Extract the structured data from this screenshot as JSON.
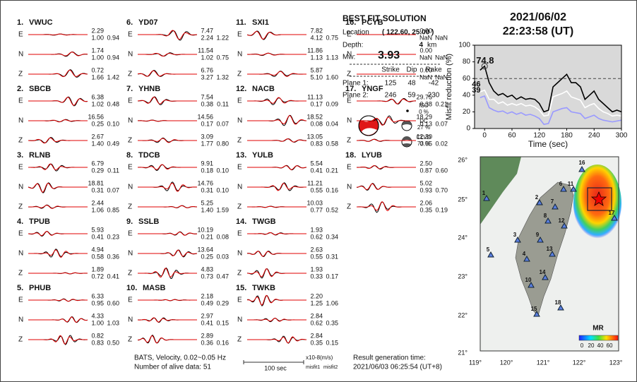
{
  "stations": [
    {
      "number": "1.",
      "name": "VWUC",
      "components": [
        {
          "comp": "E",
          "amp": "2.29",
          "misfit1": "1.00",
          "misfit2": "0.94"
        },
        {
          "comp": "N",
          "amp": "1.74",
          "misfit1": "1.00",
          "misfit2": "0.94"
        },
        {
          "comp": "Z",
          "amp": "0.72",
          "misfit1": "1.66",
          "misfit2": "1.42"
        }
      ]
    },
    {
      "number": "2.",
      "name": "SBCB",
      "components": [
        {
          "comp": "E",
          "amp": "6.38",
          "misfit1": "1.02",
          "misfit2": "0.48"
        },
        {
          "comp": "N",
          "amp": "16.56",
          "misfit1": "0.25",
          "misfit2": "0.10"
        },
        {
          "comp": "Z",
          "amp": "2.67",
          "misfit1": "1.40",
          "misfit2": "0.49"
        }
      ]
    },
    {
      "number": "3.",
      "name": "RLNB",
      "components": [
        {
          "comp": "E",
          "amp": "6.79",
          "misfit1": "0.29",
          "misfit2": "0.11"
        },
        {
          "comp": "N",
          "amp": "18.81",
          "misfit1": "0.31",
          "misfit2": "0.07"
        },
        {
          "comp": "Z",
          "amp": "2.44",
          "misfit1": "1.06",
          "misfit2": "0.85"
        }
      ]
    },
    {
      "number": "4.",
      "name": "TPUB",
      "components": [
        {
          "comp": "E",
          "amp": "5.93",
          "misfit1": "0.41",
          "misfit2": "0.23"
        },
        {
          "comp": "N",
          "amp": "4.94",
          "misfit1": "0.58",
          "misfit2": "0.36"
        },
        {
          "comp": "Z",
          "amp": "1.89",
          "misfit1": "0.72",
          "misfit2": "0.41"
        }
      ]
    },
    {
      "number": "5.",
      "name": "PHUB",
      "components": [
        {
          "comp": "E",
          "amp": "6.33",
          "misfit1": "0.95",
          "misfit2": "0.60"
        },
        {
          "comp": "N",
          "amp": "4.33",
          "misfit1": "1.00",
          "misfit2": "1.03"
        },
        {
          "comp": "Z",
          "amp": "0.82",
          "misfit1": "0.83",
          "misfit2": "0.50"
        }
      ]
    },
    {
      "number": "6.",
      "name": "YD07",
      "components": [
        {
          "comp": "E",
          "amp": "7.47",
          "misfit1": "2.24",
          "misfit2": "1.22"
        },
        {
          "comp": "N",
          "amp": "11.54",
          "misfit1": "1.02",
          "misfit2": "0.75"
        },
        {
          "comp": "Z",
          "amp": "6.76",
          "misfit1": "3.27",
          "misfit2": "1.32"
        }
      ]
    },
    {
      "number": "7.",
      "name": "YHNB",
      "components": [
        {
          "comp": "E",
          "amp": "7.54",
          "misfit1": "0.38",
          "misfit2": "0.11"
        },
        {
          "comp": "N",
          "amp": "14.56",
          "misfit1": "0.17",
          "misfit2": "0.07"
        },
        {
          "comp": "Z",
          "amp": "3.09",
          "misfit1": "1.77",
          "misfit2": "0.80"
        }
      ]
    },
    {
      "number": "8.",
      "name": "TDCB",
      "components": [
        {
          "comp": "E",
          "amp": "9.91",
          "misfit1": "0.18",
          "misfit2": "0.10"
        },
        {
          "comp": "N",
          "amp": "14.76",
          "misfit1": "0.31",
          "misfit2": "0.10"
        },
        {
          "comp": "Z",
          "amp": "5.25",
          "misfit1": "1.40",
          "misfit2": "1.59"
        }
      ]
    },
    {
      "number": "9.",
      "name": "SSLB",
      "components": [
        {
          "comp": "E",
          "amp": "10.19",
          "misfit1": "0.21",
          "misfit2": "0.08"
        },
        {
          "comp": "N",
          "amp": "13.64",
          "misfit1": "0.25",
          "misfit2": "0.03"
        },
        {
          "comp": "Z",
          "amp": "4.83",
          "misfit1": "0.73",
          "misfit2": "0.47"
        }
      ]
    },
    {
      "number": "10.",
      "name": "MASB",
      "components": [
        {
          "comp": "E",
          "amp": "2.18",
          "misfit1": "0.49",
          "misfit2": "0.29"
        },
        {
          "comp": "N",
          "amp": "2.97",
          "misfit1": "0.41",
          "misfit2": "0.15"
        },
        {
          "comp": "Z",
          "amp": "2.89",
          "misfit1": "0.36",
          "misfit2": "0.16"
        }
      ]
    },
    {
      "number": "11.",
      "name": "SXI1",
      "components": [
        {
          "comp": "E",
          "amp": "7.82",
          "misfit1": "4.12",
          "misfit2": "0.75"
        },
        {
          "comp": "N",
          "amp": "11.86",
          "misfit1": "1.13",
          "misfit2": "1.13"
        },
        {
          "comp": "Z",
          "amp": "5.87",
          "misfit1": "5.10",
          "misfit2": "1.60"
        }
      ]
    },
    {
      "number": "12.",
      "name": "NACB",
      "components": [
        {
          "comp": "E",
          "amp": "11.13",
          "misfit1": "0.17",
          "misfit2": "0.09"
        },
        {
          "comp": "N",
          "amp": "18.52",
          "misfit1": "0.08",
          "misfit2": "0.04"
        },
        {
          "comp": "Z",
          "amp": "13.05",
          "misfit1": "0.83",
          "misfit2": "0.58"
        }
      ]
    },
    {
      "number": "13.",
      "name": "YULB",
      "components": [
        {
          "comp": "E",
          "amp": "5.54",
          "misfit1": "0.41",
          "misfit2": "0.21"
        },
        {
          "comp": "N",
          "amp": "11.21",
          "misfit1": "0.55",
          "misfit2": "0.16"
        },
        {
          "comp": "Z",
          "amp": "10.03",
          "misfit1": "0.77",
          "misfit2": "0.52"
        }
      ]
    },
    {
      "number": "14.",
      "name": "TWGB",
      "components": [
        {
          "comp": "E",
          "amp": "1.93",
          "misfit1": "0.62",
          "misfit2": "0.34"
        },
        {
          "comp": "N",
          "amp": "2.63",
          "misfit1": "0.55",
          "misfit2": "0.31"
        },
        {
          "comp": "Z",
          "amp": "1.93",
          "misfit1": "0.33",
          "misfit2": "0.17"
        }
      ]
    },
    {
      "number": "15.",
      "name": "TWKB",
      "components": [
        {
          "comp": "E",
          "amp": "2.20",
          "misfit1": "1.25",
          "misfit2": "1.06"
        },
        {
          "comp": "N",
          "amp": "2.84",
          "misfit1": "0.62",
          "misfit2": "0.35"
        },
        {
          "comp": "Z",
          "amp": "2.84",
          "misfit1": "0.35",
          "misfit2": "0.15"
        }
      ]
    },
    {
      "number": "16.",
      "name": "PCYB",
      "components": [
        {
          "comp": "E",
          "amp": "0.00",
          "misfit1": "NaN",
          "misfit2": "NaN"
        },
        {
          "comp": "N",
          "amp": "0.00",
          "misfit1": "NaN",
          "misfit2": "NaN"
        },
        {
          "comp": "Z",
          "amp": "0.00",
          "misfit1": "NaN",
          "misfit2": "NaN"
        }
      ]
    },
    {
      "number": "17.",
      "name": "YNGF",
      "components": [
        {
          "comp": "E",
          "amp": "29.75",
          "misfit1": "0.38",
          "misfit2": "0.21"
        },
        {
          "comp": "N",
          "amp": "18.29",
          "misfit1": "0.13",
          "misfit2": "0.07"
        },
        {
          "comp": "Z",
          "amp": "12.30",
          "misfit1": "0.05",
          "misfit2": "0.02"
        }
      ]
    },
    {
      "number": "18.",
      "name": "LYUB",
      "components": [
        {
          "comp": "E",
          "amp": "2.50",
          "misfit1": "0.87",
          "misfit2": "0.60"
        },
        {
          "comp": "N",
          "amp": "5.02",
          "misfit1": "0.93",
          "misfit2": "0.70"
        },
        {
          "comp": "Z",
          "amp": "2.06",
          "misfit1": "0.35",
          "misfit2": "0.19"
        }
      ]
    }
  ],
  "solution": {
    "title": "BEST FIT SOLUTION",
    "location_label": "Location",
    "location": "( 122.60, 25.00 )",
    "depth_label": "Depth:",
    "depth": "4",
    "depth_unit": "km",
    "mw_label": "Mw:",
    "mw": "3.93",
    "headers": [
      "Strike",
      "Dip",
      "Rake"
    ],
    "planes": [
      {
        "label": "Plane 1:",
        "values": [
          125,
          48,
          -42
        ]
      },
      {
        "label": "Plane 2:",
        "values": [
          246,
          59,
          230
        ]
      }
    ],
    "components": [
      {
        "name": "ISO",
        "percent": "0 %"
      },
      {
        "name": "DC",
        "percent": "27 %"
      },
      {
        "name": "CLVD",
        "percent": "73 %"
      }
    ]
  },
  "event": {
    "date": "2021/06/02",
    "time": "22:23:58  (UT)"
  },
  "chart_data": {
    "type": "line",
    "xlabel": "Time (sec)",
    "ylabel": "Misfit reduction (%)",
    "x": [
      -10,
      0,
      10,
      20,
      30,
      40,
      50,
      60,
      70,
      80,
      90,
      100,
      110,
      120,
      130,
      140,
      150,
      160,
      170,
      180,
      190,
      200,
      210,
      220,
      230,
      240,
      250,
      260,
      270,
      280,
      290,
      300
    ],
    "series": [
      {
        "color": "#000000",
        "values": [
          70,
          74.8,
          55,
          45,
          40,
          42,
          38,
          40,
          35,
          38,
          35,
          36,
          35,
          30,
          20,
          22,
          50,
          55,
          60,
          65,
          55,
          55,
          50,
          35,
          40,
          45,
          35,
          30,
          25,
          20,
          22,
          20
        ]
      },
      {
        "color": "#ffffff",
        "values": [
          44,
          46,
          35,
          35,
          30,
          32,
          28,
          30,
          28,
          30,
          27,
          28,
          26,
          22,
          15,
          16,
          38,
          40,
          42,
          45,
          38,
          36,
          34,
          25,
          28,
          30,
          24,
          20,
          18,
          15,
          16,
          15
        ]
      },
      {
        "color": "#9999ff",
        "values": [
          37,
          39,
          25,
          22,
          20,
          21,
          18,
          20,
          17,
          19,
          16,
          17,
          15,
          12,
          5,
          6,
          20,
          22,
          24,
          25,
          20,
          19,
          18,
          12,
          14,
          16,
          12,
          10,
          9,
          8,
          9,
          10
        ]
      }
    ],
    "annotations": [
      {
        "text": "74.8",
        "series": 0,
        "color": "#e00000"
      },
      {
        "text": "46",
        "series": 1,
        "color": "#999999"
      },
      {
        "text": "39",
        "series": 2,
        "color": "#9999ff"
      }
    ],
    "threshold": 60,
    "xlim": [
      -22,
      300
    ],
    "ylim": [
      0,
      100
    ],
    "xticks": [
      0,
      60,
      120,
      180,
      240,
      300
    ],
    "yticks": [
      0,
      20,
      40,
      60,
      80,
      100
    ]
  },
  "map": {
    "lat_ticks": [
      "26°",
      "25°",
      "24°",
      "23°",
      "22°",
      "21°"
    ],
    "lon_ticks": [
      "119°",
      "120°",
      "121°",
      "122°",
      "123°"
    ],
    "station_labels": [
      "1",
      "2",
      "3",
      "4",
      "5",
      "6",
      "7",
      "8",
      "9",
      "10",
      "11",
      "12",
      "13",
      "14",
      "15",
      "16",
      "17",
      "18"
    ],
    "colorbar_title": "MR",
    "colorbar_ticks": [
      "0",
      "20",
      "40",
      "60"
    ]
  },
  "footer": {
    "source": "BATS, Velocity, 0.02~0.05 Hz",
    "alive": "Number of alive data: 51",
    "scale": "100 sec",
    "unit": "x10-8(m/s)",
    "misfit1": "misfit1",
    "misfit2": "misfit2",
    "result_label": "Result generation time:",
    "result_time": "2021/06/03 06:25:54 (UT+8)"
  }
}
